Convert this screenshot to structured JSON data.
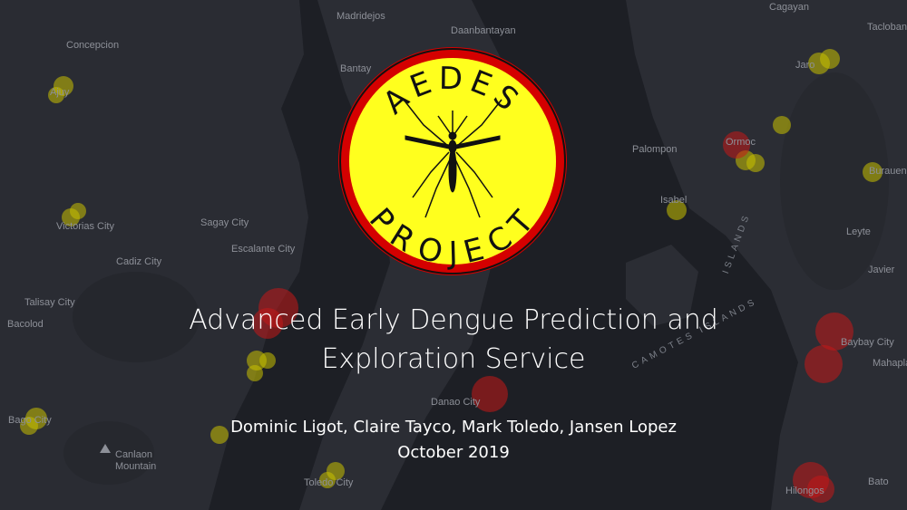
{
  "logo": {
    "top_text": "AEDES",
    "bottom_text": "PROJECT",
    "icon": "mosquito-icon",
    "colors": {
      "fill": "#ffff1e",
      "ring": "#d40000",
      "outline": "#111111"
    }
  },
  "title": {
    "line1": "Advanced Early Dengue Prediction and",
    "line2": "Exploration Service"
  },
  "authors": "Dominic Ligot, Claire Tayco, Mark Toledo, Jansen Lopez",
  "date": "October 2019",
  "map": {
    "places": [
      "Madridejos",
      "Cagayan",
      "Tacloban",
      "Concepcion",
      "Daanbantayan",
      "Bantay",
      "Ajuy",
      "Jaro",
      "Palompon",
      "Ormoc",
      "Burauen",
      "Victorias City",
      "Sagay City",
      "Isabel",
      "Escalante City",
      "Leyte",
      "Cadiz City",
      "Javier",
      "Talisay City",
      "Bacolod",
      "Baybay City",
      "Mahaplag",
      "Bago City",
      "Danao City",
      "Canlaon",
      "Mountain",
      "Toledo City",
      "Hilongos",
      "Bato"
    ],
    "sea_label": "CAMOTES ISLANDS",
    "sea_label_2": "ISLANDS",
    "colors": {
      "land": "#2c2e35",
      "water": "#1d1f25",
      "yellow_marker": "#c9c100",
      "red_marker": "#c41818"
    }
  }
}
